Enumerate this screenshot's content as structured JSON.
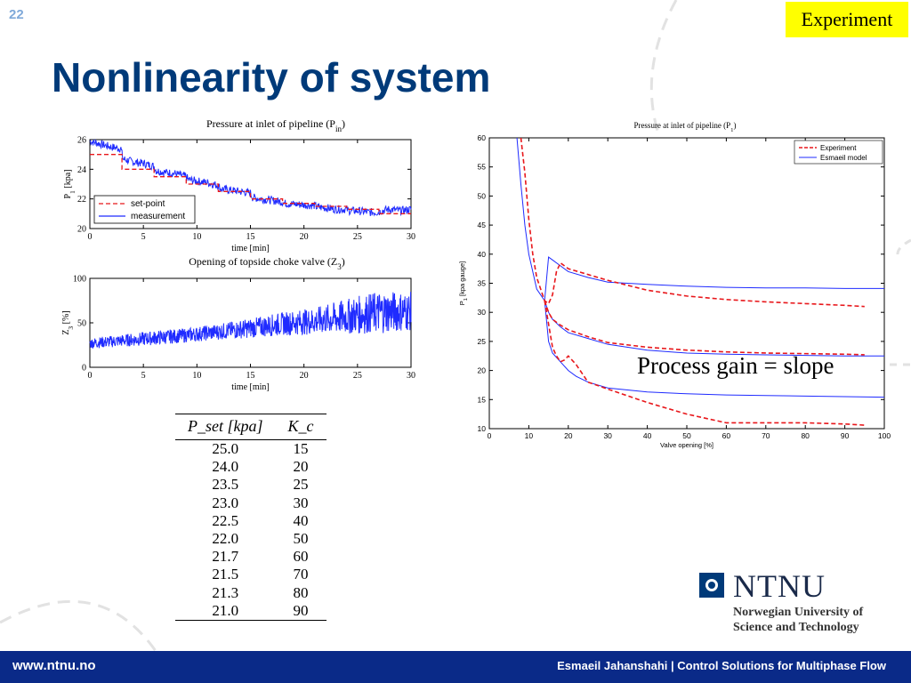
{
  "slide_number": "22",
  "tag": "Experiment",
  "title": "Nonlinearity of system",
  "annotation": "Process gain = slope",
  "table": {
    "headers": [
      "P_set [kpa]",
      "K_c"
    ],
    "rows": [
      [
        "25.0",
        "15"
      ],
      [
        "24.0",
        "20"
      ],
      [
        "23.5",
        "25"
      ],
      [
        "23.0",
        "30"
      ],
      [
        "22.5",
        "40"
      ],
      [
        "22.0",
        "50"
      ],
      [
        "21.7",
        "60"
      ],
      [
        "21.5",
        "70"
      ],
      [
        "21.3",
        "80"
      ],
      [
        "21.0",
        "90"
      ]
    ]
  },
  "logo": {
    "name": "NTNU",
    "line1": "Norwegian University of",
    "line2": "Science and Technology"
  },
  "footer": {
    "url": "www.ntnu.no",
    "credit": "Esmaeil Jahanshahi  |  Control Solutions for Multiphase Flow"
  },
  "colors": {
    "title": "#003a79",
    "footer": "#0a2a88",
    "tag_bg": "#ffff00",
    "red": "#e8171b",
    "blue": "#1f2bff"
  },
  "chart_data": [
    {
      "type": "line",
      "title": "Pressure at inlet of pipeline (P_in)",
      "xlabel": "time [min]",
      "ylabel": "P_1 [kpa]",
      "xlim": [
        0,
        30
      ],
      "ylim": [
        20,
        26
      ],
      "xticks": [
        "0",
        "5",
        "10",
        "15",
        "20",
        "25",
        "30"
      ],
      "yticks": [
        "20",
        "22",
        "24",
        "26"
      ],
      "legend_position": "bottom-left",
      "series": [
        {
          "name": "set-point",
          "style": "dashed",
          "color": "#e8171b",
          "x": [
            0,
            3,
            3,
            6,
            6,
            9,
            9,
            12,
            12,
            15,
            15,
            18,
            18,
            21,
            21,
            24,
            24,
            27,
            27,
            30
          ],
          "y": [
            25,
            25,
            24,
            24,
            23.5,
            23.5,
            23,
            23,
            22.5,
            22.5,
            22,
            22,
            21.7,
            21.7,
            21.5,
            21.5,
            21.3,
            21.3,
            21,
            21
          ]
        },
        {
          "name": "measurement",
          "style": "solid",
          "color": "#1f2bff",
          "x": [
            0,
            1,
            2,
            2.9,
            3.1,
            4,
            5,
            6,
            6.2,
            7,
            8,
            9,
            9.2,
            10,
            11,
            12,
            12.2,
            13,
            14,
            15,
            15.2,
            16,
            17,
            18,
            18.2,
            19,
            20,
            21,
            21.2,
            22,
            23,
            24,
            24.2,
            25,
            26,
            27,
            27.2,
            28,
            29,
            30
          ],
          "y": [
            25.9,
            25.7,
            25.5,
            25.4,
            24.7,
            24.5,
            24.4,
            24.2,
            23.9,
            23.8,
            23.7,
            23.5,
            23.3,
            23.2,
            23.1,
            22.9,
            22.7,
            22.6,
            22.5,
            22.4,
            22.1,
            22,
            21.9,
            21.8,
            21.7,
            21.65,
            21.6,
            21.55,
            21.45,
            21.4,
            21.3,
            21.3,
            21.2,
            21.2,
            21.1,
            21.1,
            21.2,
            21.3,
            21.2,
            21.3
          ]
        }
      ]
    },
    {
      "type": "line",
      "title": "Opening of topside choke valve (Z_3)",
      "xlabel": "time [min]",
      "ylabel": "Z_3 [%]",
      "xlim": [
        0,
        30
      ],
      "ylim": [
        0,
        100
      ],
      "xticks": [
        "0",
        "5",
        "10",
        "15",
        "20",
        "25",
        "30"
      ],
      "yticks": [
        "0",
        "50",
        "100"
      ],
      "series": [
        {
          "name": "",
          "style": "solid",
          "color": "#1f2bff",
          "x": [
            0,
            3,
            6,
            9,
            12,
            15,
            18,
            21,
            24,
            27,
            30
          ],
          "center": [
            27,
            30,
            33,
            36,
            40,
            44,
            49,
            52,
            57,
            62,
            63
          ],
          "amplitude": [
            6,
            7,
            8,
            8,
            9,
            11,
            13,
            15,
            20,
            24,
            22
          ]
        }
      ]
    },
    {
      "type": "line",
      "title": "Pressure at inlet of pipeline (P_1)",
      "xlabel": "Valve opening [%]",
      "ylabel": "P_1 [kpa gauge]",
      "xlim": [
        0,
        100
      ],
      "ylim": [
        10,
        60
      ],
      "xticks": [
        "0",
        "10",
        "20",
        "30",
        "40",
        "50",
        "60",
        "70",
        "80",
        "90",
        "100"
      ],
      "yticks": [
        "10",
        "15",
        "20",
        "25",
        "30",
        "35",
        "40",
        "45",
        "50",
        "55",
        "60"
      ],
      "legend_position": "top-right",
      "series": [
        {
          "name": "Experiment",
          "style": "dashed",
          "color": "#e8171b",
          "branches": [
            {
              "x": [
                8,
                9,
                10,
                11,
                12,
                13,
                14,
                15,
                16,
                17,
                18,
                20,
                25,
                30,
                40,
                50,
                60,
                70,
                80,
                90,
                95
              ],
              "y": [
                60,
                54,
                46,
                40,
                36,
                34,
                32,
                31.5,
                33,
                37,
                38.5,
                37.5,
                36.5,
                35.5,
                33.8,
                32.8,
                32.2,
                31.8,
                31.5,
                31.2,
                31
              ]
            },
            {
              "x": [
                14,
                15,
                16,
                18,
                20,
                25,
                30,
                40,
                50,
                60,
                70,
                80,
                90,
                95
              ],
              "y": [
                32,
                30,
                28.8,
                27.8,
                27,
                25.8,
                24.8,
                24,
                23.5,
                23.2,
                23,
                22.9,
                22.8,
                22.7
              ]
            },
            {
              "x": [
                14,
                15,
                16,
                17,
                18,
                19,
                20,
                22,
                25,
                30,
                40,
                50,
                60,
                70,
                80,
                90,
                95
              ],
              "y": [
                32,
                28,
                24,
                22.5,
                21.5,
                21.8,
                22.5,
                21,
                18,
                16.8,
                14.5,
                12.5,
                11,
                11,
                11,
                10.8,
                10.6
              ]
            }
          ]
        },
        {
          "name": "Esmaeil model",
          "style": "solid",
          "color": "#1f2bff",
          "branches": [
            {
              "x": [
                7,
                8,
                9,
                10,
                11,
                12,
                13,
                14,
                15,
                16,
                18,
                20,
                25,
                30,
                40,
                50,
                60,
                70,
                80,
                90,
                100
              ],
              "y": [
                60,
                52,
                45,
                40,
                37,
                34,
                33,
                32,
                39.5,
                39,
                38,
                37,
                36,
                35.2,
                34.8,
                34.5,
                34.3,
                34.2,
                34.2,
                34.1,
                34.1
              ]
            },
            {
              "x": [
                14,
                15,
                16,
                18,
                20,
                25,
                30,
                40,
                50,
                60,
                70,
                80,
                90,
                100
              ],
              "y": [
                32,
                30,
                28.8,
                27.5,
                26.5,
                25.5,
                24.5,
                23.5,
                23,
                22.8,
                22.7,
                22.6,
                22.5,
                22.5
              ]
            },
            {
              "x": [
                14,
                15,
                16,
                18,
                20,
                22,
                25,
                30,
                40,
                50,
                60,
                70,
                80,
                90,
                100
              ],
              "y": [
                32,
                25,
                23,
                21.5,
                20,
                19,
                18,
                17,
                16.3,
                16,
                15.8,
                15.7,
                15.6,
                15.5,
                15.4
              ]
            }
          ]
        }
      ]
    }
  ]
}
